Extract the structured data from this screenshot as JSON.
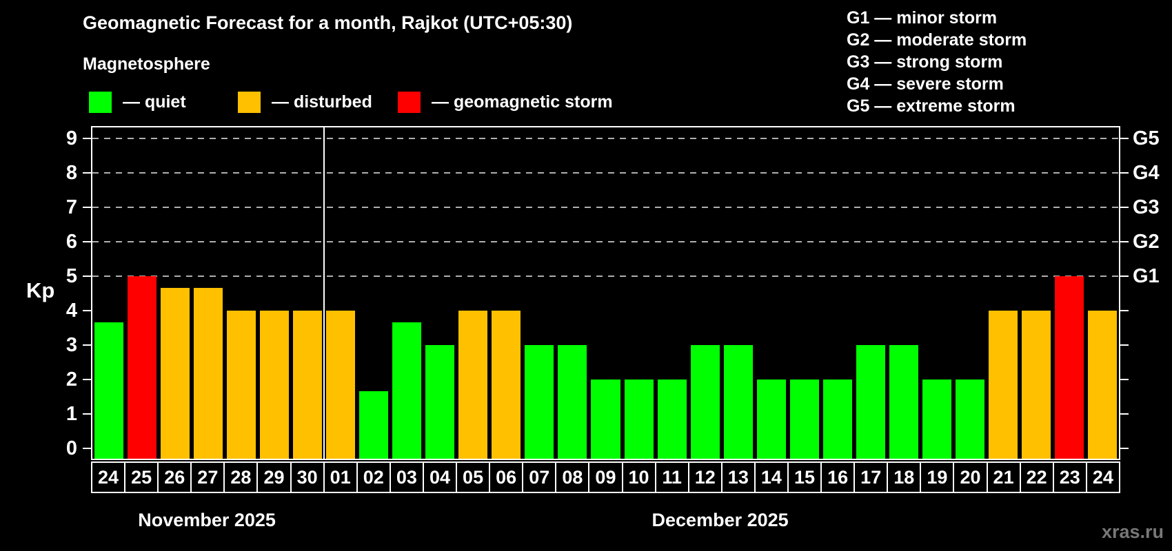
{
  "title": "Geomagnetic Forecast for a month, Rajkot (UTC+05:30)",
  "subtitle": "Magnetosphere",
  "legend": {
    "colors": {
      "quiet": "#00ff00",
      "disturbed": "#ffc000",
      "storm": "#ff0000"
    },
    "items": [
      {
        "status": "quiet",
        "label": "— quiet"
      },
      {
        "status": "disturbed",
        "label": "— disturbed"
      },
      {
        "status": "storm",
        "label": "— geomagnetic storm"
      }
    ]
  },
  "g_scale_legend": [
    "G1 — minor storm",
    "G2 — moderate storm",
    "G3 — strong storm",
    "G4 — severe storm",
    "G5 — extreme storm"
  ],
  "y_axis": {
    "label": "Kp",
    "ticks": [
      0,
      1,
      2,
      3,
      4,
      5,
      6,
      7,
      8,
      9
    ]
  },
  "right_axis": {
    "labels": [
      {
        "kp": 5,
        "label": "G1"
      },
      {
        "kp": 6,
        "label": "G2"
      },
      {
        "kp": 7,
        "label": "G3"
      },
      {
        "kp": 8,
        "label": "G4"
      },
      {
        "kp": 9,
        "label": "G5"
      }
    ],
    "gridline_kp": [
      5,
      6,
      7,
      8,
      9
    ]
  },
  "months": [
    {
      "label": "November 2025",
      "days": 7
    },
    {
      "label": "December 2025",
      "days": 24
    }
  ],
  "watermark": "xras.ru",
  "chart_data": {
    "type": "bar",
    "title": "Geomagnetic Forecast for a month, Rajkot (UTC+05:30)",
    "xlabel": "",
    "ylabel": "Kp",
    "ylim": [
      0,
      9
    ],
    "grid": "horizontal dashed lines at Kp 5,6,7,8,9 (G1–G5 storm levels)",
    "legend_position": "top",
    "categories": [
      "24",
      "25",
      "26",
      "27",
      "28",
      "29",
      "30",
      "01",
      "02",
      "03",
      "04",
      "05",
      "06",
      "07",
      "08",
      "09",
      "10",
      "11",
      "12",
      "13",
      "14",
      "15",
      "16",
      "17",
      "18",
      "19",
      "20",
      "21",
      "22",
      "23",
      "24"
    ],
    "month_of_category": [
      "Nov",
      "Nov",
      "Nov",
      "Nov",
      "Nov",
      "Nov",
      "Nov",
      "Dec",
      "Dec",
      "Dec",
      "Dec",
      "Dec",
      "Dec",
      "Dec",
      "Dec",
      "Dec",
      "Dec",
      "Dec",
      "Dec",
      "Dec",
      "Dec",
      "Dec",
      "Dec",
      "Dec",
      "Dec",
      "Dec",
      "Dec",
      "Dec",
      "Dec",
      "Dec",
      "Dec"
    ],
    "values": [
      3.67,
      5,
      4.67,
      4.67,
      4,
      4,
      4,
      4,
      1.67,
      3.67,
      3,
      4,
      4,
      3,
      3,
      2,
      2,
      2,
      3,
      3,
      2,
      2,
      2,
      3,
      3,
      2,
      2,
      4,
      4,
      5,
      4
    ],
    "statuses": [
      "quiet",
      "storm",
      "disturbed",
      "disturbed",
      "disturbed",
      "disturbed",
      "disturbed",
      "disturbed",
      "quiet",
      "quiet",
      "quiet",
      "disturbed",
      "disturbed",
      "quiet",
      "quiet",
      "quiet",
      "quiet",
      "quiet",
      "quiet",
      "quiet",
      "quiet",
      "quiet",
      "quiet",
      "quiet",
      "quiet",
      "quiet",
      "quiet",
      "disturbed",
      "disturbed",
      "storm",
      "disturbed"
    ]
  }
}
